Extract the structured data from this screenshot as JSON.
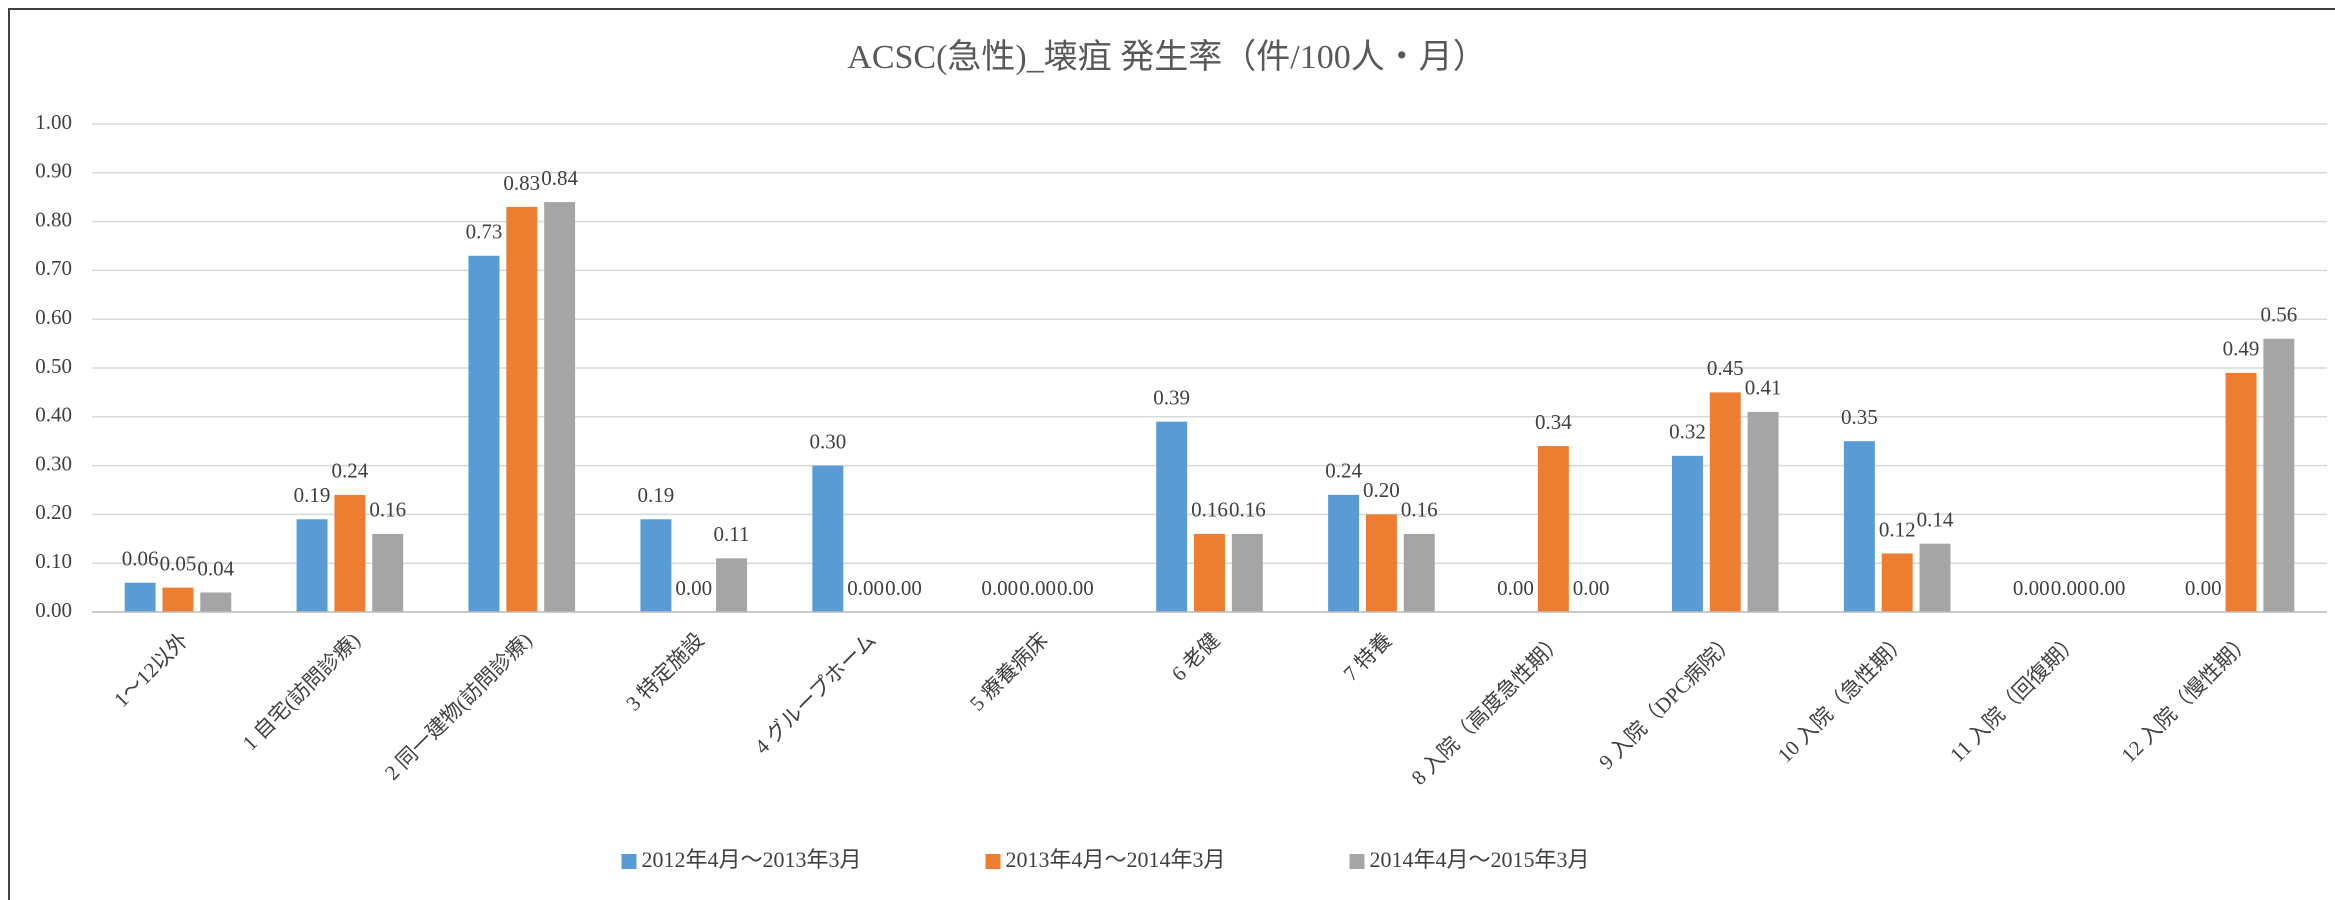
{
  "chart_data": {
    "type": "bar",
    "title": "ACSC(急性)_壊疽 発生率（件/100人・月）",
    "categories": [
      "1～12以外",
      "1 自宅(訪問診療)",
      "2 同一建物(訪問診療)",
      "3 特定施設",
      "4 グループホーム",
      "5 療養病床",
      "6 老健",
      "7 特養",
      "8 入院（高度急性期）",
      "9 入院（DPC病院）",
      "10 入院（急性期）",
      "11 入院（回復期）",
      "12 入院（慢性期）"
    ],
    "series": [
      {
        "name": "2012年4月～2013年3月",
        "color": "#5b9bd5",
        "values": [
          0.06,
          0.19,
          0.73,
          0.19,
          0.3,
          0.0,
          0.39,
          0.24,
          0.0,
          0.32,
          0.35,
          0.0,
          0.0
        ],
        "value_labels": [
          "0.06",
          "0.19",
          "0.73",
          "0.19",
          "0.30",
          "0.00",
          "0.39",
          "0.24",
          "0.00",
          "0.32",
          "0.35",
          "0.00",
          "0.00"
        ]
      },
      {
        "name": "2013年4月～2014年3月",
        "color": "#ed7d31",
        "values": [
          0.05,
          0.24,
          0.83,
          0.0,
          0.0,
          0.0,
          0.16,
          0.2,
          0.34,
          0.45,
          0.12,
          0.0,
          0.49
        ],
        "value_labels": [
          "0.05",
          "0.24",
          "0.83",
          "0.00",
          "0.00",
          "0.00",
          "0.16",
          "0.20",
          "0.34",
          "0.45",
          "0.12",
          "0.00",
          "0.49"
        ]
      },
      {
        "name": "2014年4月～2015年3月",
        "color": "#a5a5a5",
        "values": [
          0.04,
          0.16,
          0.84,
          0.11,
          0.0,
          0.0,
          0.16,
          0.16,
          0.0,
          0.41,
          0.14,
          0.0,
          0.56
        ],
        "value_labels": [
          "0.04",
          "0.16",
          "0.84",
          "0.11",
          "0.00",
          "0.00",
          "0.16",
          "0.16",
          "0.00",
          "0.41",
          "0.14",
          "0.00",
          "0.56"
        ]
      }
    ],
    "ylim": [
      0,
      1
    ],
    "yticks": [
      {
        "value": 0,
        "label": "0.00"
      },
      {
        "value": 0.1,
        "label": "0.10"
      },
      {
        "value": 0.2,
        "label": "0.20"
      },
      {
        "value": 0.3,
        "label": "0.30"
      },
      {
        "value": 0.4,
        "label": "0.40"
      },
      {
        "value": 0.5,
        "label": "0.50"
      },
      {
        "value": 0.6,
        "label": "0.60"
      },
      {
        "value": 0.7,
        "label": "0.70"
      },
      {
        "value": 0.8,
        "label": "0.80"
      },
      {
        "value": 0.9,
        "label": "0.90"
      },
      {
        "value": 1,
        "label": "1.00"
      }
    ],
    "grid": true,
    "legend": "bottom"
  }
}
